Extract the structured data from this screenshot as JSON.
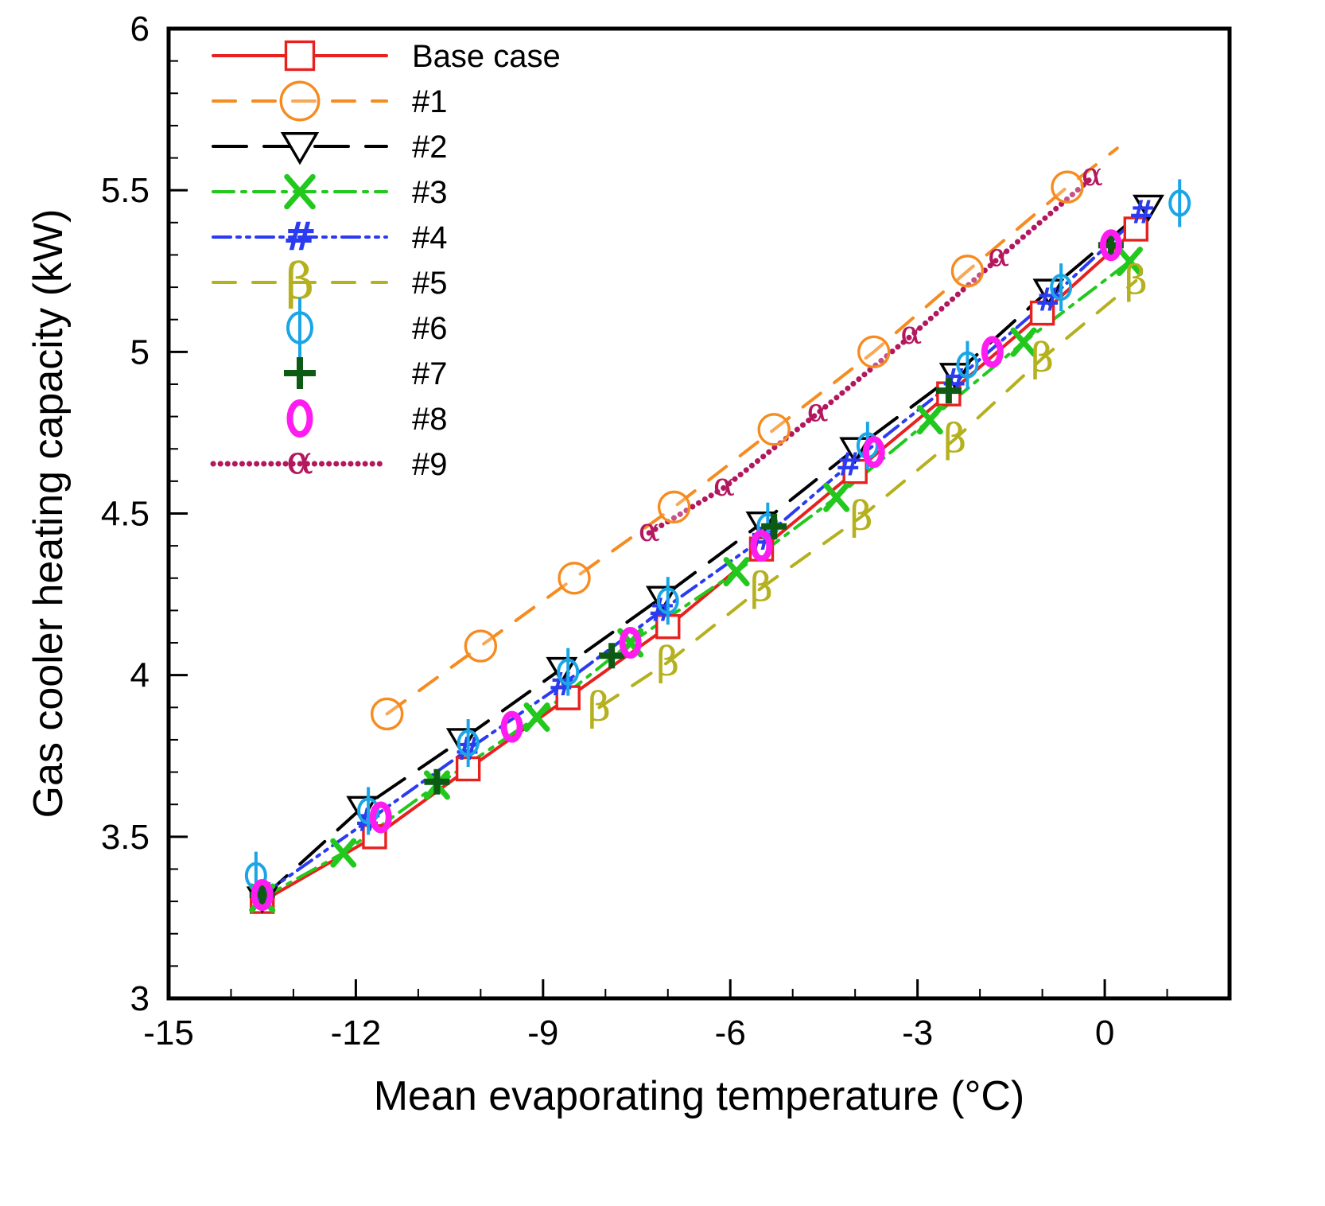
{
  "chart_data": {
    "type": "line",
    "title": "",
    "xlabel": "Mean evaporating temperature (°C)",
    "ylabel": "Gas cooler heating capacity (kW)",
    "xlim": [
      -15,
      2
    ],
    "ylim": [
      3,
      6
    ],
    "x_ticks": [
      -15,
      -12,
      -9,
      -6,
      -3,
      0
    ],
    "x_tick_labels": [
      "-15",
      "-12",
      "-9",
      "-6",
      "-3",
      "0"
    ],
    "y_ticks": [
      3,
      3.5,
      4,
      4.5,
      5,
      5.5,
      6
    ],
    "y_tick_labels": [
      "3",
      "3.5",
      "4",
      "4.5",
      "5",
      "5.5",
      "6"
    ],
    "grid": false,
    "legend_position": "top-left",
    "series": [
      {
        "name": "Base case",
        "color": "#e8201e",
        "line": "solid",
        "marker": "square",
        "x": [
          -13.5,
          -11.7,
          -10.2,
          -8.6,
          -7.0,
          -5.5,
          -4.0,
          -2.5,
          -1.0,
          0.5
        ],
        "y": [
          3.3,
          3.5,
          3.71,
          3.93,
          4.15,
          4.39,
          4.63,
          4.87,
          5.12,
          5.38
        ]
      },
      {
        "name": "#1",
        "color": "#f68b1f",
        "line": "dashed",
        "marker": "circle",
        "x": [
          -11.5,
          -10.0,
          -8.5,
          -6.9,
          -5.3,
          -3.7,
          -2.2,
          -0.6,
          0.2
        ],
        "y": [
          3.88,
          4.09,
          4.3,
          4.52,
          4.76,
          5.0,
          5.25,
          5.51,
          5.63
        ]
      },
      {
        "name": "#2",
        "color": "#000000",
        "line": "longdash",
        "marker": "triangle-down",
        "x": [
          -13.5,
          -11.9,
          -10.3,
          -8.7,
          -7.1,
          -5.5,
          -4.0,
          -2.4,
          -0.9,
          0.7
        ],
        "y": [
          3.31,
          3.59,
          3.8,
          4.02,
          4.24,
          4.47,
          4.7,
          4.93,
          5.19,
          5.45
        ]
      },
      {
        "name": "#3",
        "color": "#22c81e",
        "line": "dashdot",
        "marker": "x",
        "x": [
          -13.5,
          -12.2,
          -10.7,
          -9.1,
          -7.6,
          -5.9,
          -4.3,
          -2.8,
          -1.3,
          0.4
        ],
        "y": [
          3.31,
          3.45,
          3.66,
          3.87,
          4.1,
          4.32,
          4.55,
          4.79,
          5.03,
          5.28
        ]
      },
      {
        "name": "#4",
        "color": "#2b3bf0",
        "line": "dashdotdot",
        "marker": "hash",
        "x": [
          -13.5,
          -11.8,
          -10.2,
          -8.7,
          -7.1,
          -5.5,
          -4.1,
          -2.4,
          -0.9,
          0.6
        ],
        "y": [
          3.32,
          3.55,
          3.77,
          3.97,
          4.2,
          4.42,
          4.65,
          4.91,
          5.16,
          5.43
        ]
      },
      {
        "name": "#5",
        "color": "#b5b01e",
        "line": "dashed",
        "marker": "beta",
        "x": [
          -8.1,
          -7.0,
          -5.5,
          -3.9,
          -2.4,
          -1.0,
          0.5
        ],
        "y": [
          3.9,
          4.04,
          4.27,
          4.49,
          4.73,
          4.98,
          5.22
        ]
      },
      {
        "name": "#6",
        "color": "#1aa6e6",
        "line": "none",
        "marker": "phi",
        "x": [
          -13.6,
          -11.8,
          -10.2,
          -8.6,
          -7.0,
          -5.4,
          -3.8,
          -2.2,
          -0.7,
          1.2
        ],
        "y": [
          3.38,
          3.58,
          3.79,
          4.01,
          4.23,
          4.46,
          4.71,
          4.96,
          5.2,
          5.46
        ]
      },
      {
        "name": "#7",
        "color": "#0c5a14",
        "line": "none",
        "marker": "plus",
        "x": [
          -13.5,
          -10.7,
          -7.9,
          -5.3,
          -2.5,
          0.1
        ],
        "y": [
          3.32,
          3.67,
          4.06,
          4.46,
          4.88,
          5.33
        ]
      },
      {
        "name": "#8",
        "color": "#ff1cf0",
        "line": "none",
        "marker": "zero",
        "x": [
          -13.5,
          -11.6,
          -9.5,
          -7.6,
          -5.5,
          -3.7,
          -1.8,
          0.1
        ],
        "y": [
          3.32,
          3.56,
          3.84,
          4.1,
          4.4,
          4.69,
          5.0,
          5.33
        ]
      },
      {
        "name": "#9",
        "color": "#b3185f",
        "line": "dotted",
        "marker": "alpha",
        "x": [
          -7.3,
          -6.1,
          -4.6,
          -3.1,
          -1.7,
          -0.2
        ],
        "y": [
          4.44,
          4.58,
          4.81,
          5.05,
          5.29,
          5.54
        ]
      }
    ]
  }
}
